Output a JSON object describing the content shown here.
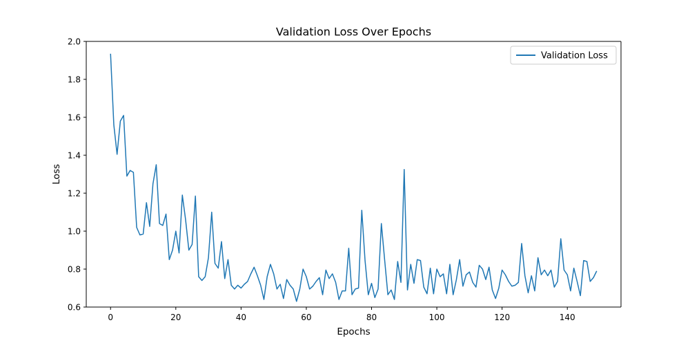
{
  "chart_data": {
    "type": "line",
    "title": "Validation Loss Over Epochs",
    "xlabel": "Epochs",
    "ylabel": "Loss",
    "xlim": [
      -7.45,
      156.45
    ],
    "ylim": [
      0.6,
      2.0
    ],
    "xticks": [
      0,
      20,
      40,
      60,
      80,
      100,
      120,
      140
    ],
    "yticks": [
      0.6,
      0.8,
      1.0,
      1.2,
      1.4,
      1.6,
      1.8,
      2.0
    ],
    "ytick_labels": [
      "0.6",
      "0.8",
      "1.0",
      "1.2",
      "1.4",
      "1.6",
      "1.8",
      "2.0"
    ],
    "grid": false,
    "legend_position": "top-right",
    "colors": {
      "series": "#1f77b4"
    },
    "series": [
      {
        "name": "Validation Loss",
        "x": [
          0,
          1,
          2,
          3,
          4,
          5,
          6,
          7,
          8,
          9,
          10,
          11,
          12,
          13,
          14,
          15,
          16,
          17,
          18,
          19,
          20,
          21,
          22,
          23,
          24,
          25,
          26,
          27,
          28,
          29,
          30,
          31,
          32,
          33,
          34,
          35,
          36,
          37,
          38,
          39,
          40,
          41,
          42,
          43,
          44,
          45,
          46,
          47,
          48,
          49,
          50,
          51,
          52,
          53,
          54,
          55,
          56,
          57,
          58,
          59,
          60,
          61,
          62,
          63,
          64,
          65,
          66,
          67,
          68,
          69,
          70,
          71,
          72,
          73,
          74,
          75,
          76,
          77,
          78,
          79,
          80,
          81,
          82,
          83,
          84,
          85,
          86,
          87,
          88,
          89,
          90,
          91,
          92,
          93,
          94,
          95,
          96,
          97,
          98,
          99,
          100,
          101,
          102,
          103,
          104,
          105,
          106,
          107,
          108,
          109,
          110,
          111,
          112,
          113,
          114,
          115,
          116,
          117,
          118,
          119,
          120,
          121,
          122,
          123,
          124,
          125,
          126,
          127,
          128,
          129,
          130,
          131,
          132,
          133,
          134,
          135,
          136,
          137,
          138,
          139,
          140,
          141,
          142,
          143,
          144,
          145,
          146,
          147,
          148,
          149
        ],
        "values": [
          1.935,
          1.56,
          1.405,
          1.58,
          1.61,
          1.29,
          1.32,
          1.31,
          1.02,
          0.98,
          0.985,
          1.15,
          1.025,
          1.25,
          1.35,
          1.04,
          1.03,
          1.09,
          0.85,
          0.9,
          1.0,
          0.885,
          1.19,
          1.06,
          0.9,
          0.93,
          1.185,
          0.76,
          0.74,
          0.76,
          0.86,
          1.1,
          0.83,
          0.805,
          0.945,
          0.75,
          0.85,
          0.715,
          0.695,
          0.715,
          0.7,
          0.72,
          0.735,
          0.775,
          0.81,
          0.765,
          0.715,
          0.64,
          0.76,
          0.825,
          0.775,
          0.695,
          0.72,
          0.645,
          0.745,
          0.715,
          0.695,
          0.63,
          0.695,
          0.8,
          0.76,
          0.695,
          0.71,
          0.735,
          0.755,
          0.665,
          0.795,
          0.75,
          0.775,
          0.73,
          0.64,
          0.685,
          0.685,
          0.91,
          0.665,
          0.695,
          0.7,
          1.11,
          0.845,
          0.665,
          0.725,
          0.65,
          0.695,
          1.04,
          0.85,
          0.665,
          0.69,
          0.64,
          0.84,
          0.73,
          1.325,
          0.69,
          0.825,
          0.725,
          0.85,
          0.845,
          0.705,
          0.67,
          0.805,
          0.67,
          0.8,
          0.76,
          0.775,
          0.67,
          0.825,
          0.665,
          0.745,
          0.85,
          0.71,
          0.77,
          0.785,
          0.73,
          0.705,
          0.82,
          0.8,
          0.745,
          0.81,
          0.69,
          0.645,
          0.7,
          0.795,
          0.77,
          0.735,
          0.71,
          0.715,
          0.73,
          0.935,
          0.765,
          0.675,
          0.765,
          0.685,
          0.86,
          0.77,
          0.795,
          0.765,
          0.795,
          0.705,
          0.735,
          0.96,
          0.795,
          0.77,
          0.685,
          0.805,
          0.735,
          0.66,
          0.845,
          0.84,
          0.735,
          0.755,
          0.79
        ]
      }
    ]
  }
}
